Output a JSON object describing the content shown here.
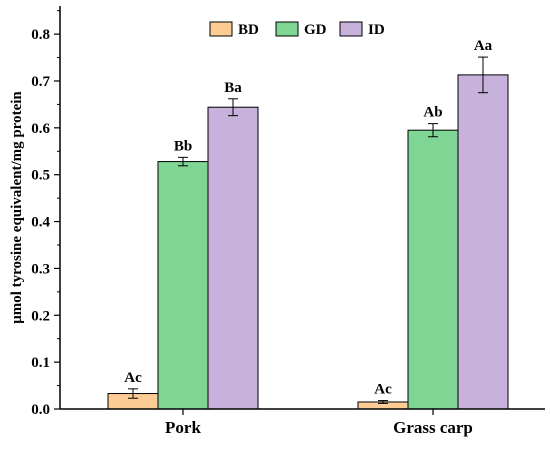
{
  "chart_data": {
    "type": "bar",
    "ylabel": "μmol tyrosine equivalent/mg protein",
    "xlabel": "",
    "ylim": [
      0,
      0.86
    ],
    "yticks": [
      "0.0",
      "0.1",
      "0.2",
      "0.3",
      "0.4",
      "0.5",
      "0.6",
      "0.7",
      "0.8"
    ],
    "ytick_values": [
      0,
      0.1,
      0.2,
      0.3,
      0.4,
      0.5,
      0.6,
      0.7,
      0.8
    ],
    "categories": [
      "Pork",
      "Grass carp"
    ],
    "legend_position": "top-center",
    "grid": false,
    "series": [
      {
        "name": "BD",
        "color": "#fdcc95",
        "values": [
          0.033,
          0.015
        ],
        "errors": [
          0.01,
          0.003
        ],
        "labels": [
          "Ac",
          "Ac"
        ]
      },
      {
        "name": "GD",
        "color": "#7fd694",
        "values": [
          0.528,
          0.595
        ],
        "errors": [
          0.009,
          0.014
        ],
        "labels": [
          "Bb",
          "Ab"
        ]
      },
      {
        "name": "ID",
        "color": "#c7b2dc",
        "values": [
          0.644,
          0.713
        ],
        "errors": [
          0.018,
          0.038
        ],
        "labels": [
          "Ba",
          "Aa"
        ]
      }
    ]
  }
}
